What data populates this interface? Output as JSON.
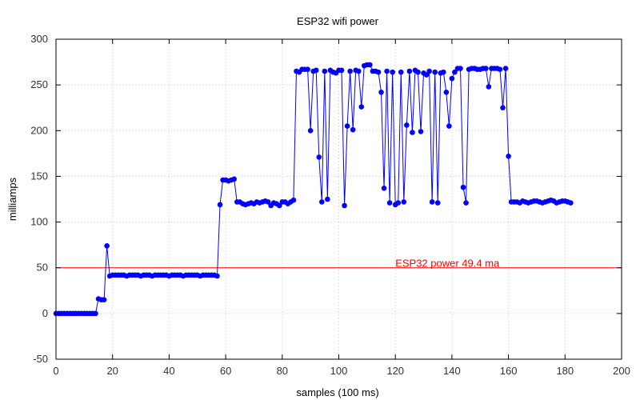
{
  "chart_data": {
    "type": "line",
    "title": "ESP32 wifi power",
    "xlabel": "samples (100 ms)",
    "ylabel": "milliamps",
    "xlim": [
      0,
      200
    ],
    "ylim": [
      -50,
      300
    ],
    "x_ticks": [
      0,
      20,
      40,
      60,
      80,
      100,
      120,
      140,
      160,
      180,
      200
    ],
    "y_ticks": [
      -50,
      0,
      50,
      100,
      150,
      200,
      250,
      300
    ],
    "grid": true,
    "series": [
      {
        "color": "#0000ff",
        "markers": true,
        "values": [
          0,
          0,
          0,
          0,
          0,
          0,
          0,
          0,
          0,
          0,
          0,
          0,
          0,
          0,
          0,
          16,
          15,
          15,
          74,
          41,
          42,
          42,
          42,
          42,
          42,
          41,
          42,
          42,
          42,
          42,
          41,
          42,
          42,
          42,
          41,
          42,
          42,
          42,
          42,
          42,
          41,
          42,
          42,
          42,
          42,
          41,
          42,
          42,
          42,
          42,
          42,
          41,
          42,
          42,
          42,
          42,
          42,
          41,
          119,
          146,
          146,
          145,
          146,
          147,
          122,
          122,
          120,
          119,
          120,
          121,
          120,
          122,
          121,
          122,
          123,
          122,
          118,
          121,
          120,
          118,
          122,
          122,
          120,
          122,
          124,
          265,
          264,
          267,
          267,
          267,
          200,
          265,
          266,
          171,
          122,
          265,
          125,
          266,
          264,
          263,
          266,
          266,
          118,
          205,
          265,
          201,
          266,
          265,
          226,
          271,
          272,
          272,
          265,
          265,
          264,
          242,
          137,
          265,
          121,
          264,
          119,
          121,
          264,
          122,
          206,
          265,
          198,
          266,
          264,
          199,
          263,
          261,
          265,
          122,
          264,
          121,
          263,
          264,
          242,
          205,
          257,
          264,
          268,
          268,
          138,
          121,
          267,
          268,
          268,
          267,
          267,
          268,
          268,
          248,
          268,
          268,
          268,
          267,
          225,
          268,
          172,
          122,
          122,
          122,
          121,
          123,
          122,
          121,
          122,
          123,
          123,
          122,
          121,
          122,
          123,
          124,
          123,
          121,
          122,
          123,
          123,
          122,
          121
        ]
      }
    ],
    "reference_line": {
      "y": 50,
      "label": "ESP32 power 49.4 ma",
      "color": "#ff0000"
    }
  }
}
